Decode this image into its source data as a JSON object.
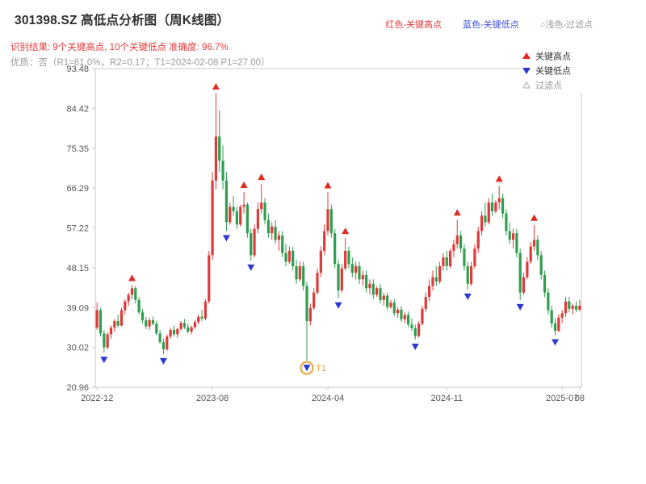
{
  "header": {
    "title": "301398.SZ 高低点分析图（周K线图）",
    "legend_top": [
      {
        "label": "红色-关键高点",
        "color": "#e03c3c"
      },
      {
        "label": "蓝色-关键低点",
        "color": "#3c4ddb"
      },
      {
        "label": "○浅色-过滤点",
        "color": "#999999"
      }
    ],
    "result_line": "识别结果: 9个关键高点, 10个关键低点  准确度: 96.7%",
    "quality_line": "优质：否（R1=61.0%，R2=0.17；T1=2024-02-08 P1=27.00）"
  },
  "chart_data": {
    "type": "candlestick",
    "title": "301398.SZ 高低点分析图（周K线图）",
    "ylim": [
      20.96,
      93.48
    ],
    "y_ticks": [
      20.96,
      30.02,
      39.09,
      48.15,
      57.22,
      66.29,
      75.35,
      84.42,
      93.48
    ],
    "x_ticks": [
      {
        "i": 0,
        "label": "2022-12"
      },
      {
        "i": 33,
        "label": "2023-08"
      },
      {
        "i": 66,
        "label": "2024-04"
      },
      {
        "i": 100,
        "label": "2024-11"
      },
      {
        "i": 133,
        "label": "2025-07"
      },
      {
        "i": 138,
        "label": "08"
      }
    ],
    "colors": {
      "up": "#dd3b3a",
      "down": "#2f9e4f",
      "key_high": "#e02a22",
      "key_low": "#2a3ace",
      "filtered": "#aaaaaa",
      "t1": "#e9a23b",
      "frame": "#c9c9c9",
      "axis_text": "#555555"
    },
    "legend": [
      {
        "label": "关键高点",
        "marker": "triangle-up",
        "color": "#e02a22",
        "text_color": "#333333"
      },
      {
        "label": "关键低点",
        "marker": "triangle-down",
        "color": "#2a3ace",
        "text_color": "#333333"
      },
      {
        "label": "过滤点",
        "marker": "triangle-up-hollow",
        "color": "#aaaaaa",
        "text_color": "#999999"
      }
    ],
    "candles": [
      [
        34.5,
        40.3,
        34.0,
        38.5
      ],
      [
        38.5,
        39.0,
        32.5,
        33.2
      ],
      [
        33.2,
        34.0,
        28.8,
        30.0
      ],
      [
        30.0,
        33.5,
        29.5,
        33.0
      ],
      [
        33.0,
        35.0,
        32.0,
        34.5
      ],
      [
        34.5,
        36.5,
        33.5,
        36.0
      ],
      [
        36.0,
        37.5,
        34.5,
        35.0
      ],
      [
        35.0,
        39.0,
        34.8,
        38.5
      ],
      [
        38.5,
        41.0,
        37.5,
        40.5
      ],
      [
        40.5,
        42.5,
        39.5,
        42.0
      ],
      [
        42.0,
        44.2,
        41.0,
        43.5
      ],
      [
        43.5,
        44.0,
        40.0,
        40.8
      ],
      [
        40.8,
        41.5,
        37.5,
        38.0
      ],
      [
        38.0,
        38.8,
        35.5,
        36.2
      ],
      [
        36.2,
        37.0,
        34.2,
        34.8
      ],
      [
        34.8,
        36.8,
        34.0,
        36.2
      ],
      [
        36.2,
        37.0,
        35.0,
        35.4
      ],
      [
        35.4,
        36.0,
        32.8,
        33.2
      ],
      [
        33.2,
        34.0,
        30.8,
        31.2
      ],
      [
        31.2,
        32.0,
        28.5,
        29.6
      ],
      [
        29.6,
        33.0,
        29.2,
        32.5
      ],
      [
        32.5,
        34.5,
        32.0,
        34.0
      ],
      [
        34.0,
        35.0,
        32.5,
        33.0
      ],
      [
        33.0,
        34.5,
        32.2,
        34.2
      ],
      [
        34.2,
        36.0,
        33.8,
        35.6
      ],
      [
        35.6,
        36.5,
        34.2,
        34.6
      ],
      [
        34.6,
        35.5,
        33.2,
        33.6
      ],
      [
        33.6,
        35.0,
        33.0,
        34.6
      ],
      [
        34.6,
        36.2,
        34.2,
        35.8
      ],
      [
        35.8,
        37.5,
        35.2,
        37.0
      ],
      [
        37.0,
        38.5,
        36.0,
        36.6
      ],
      [
        36.6,
        41.0,
        36.2,
        40.5
      ],
      [
        40.5,
        52.0,
        40.0,
        51.0
      ],
      [
        51.0,
        70.0,
        50.0,
        68.0
      ],
      [
        68.0,
        87.8,
        66.0,
        78.0
      ],
      [
        78.0,
        84.0,
        70.0,
        72.5
      ],
      [
        72.5,
        76.0,
        66.0,
        68.0
      ],
      [
        68.0,
        70.0,
        56.5,
        58.5
      ],
      [
        58.5,
        63.0,
        58.0,
        62.0
      ],
      [
        62.0,
        64.5,
        60.0,
        61.0
      ],
      [
        61.0,
        62.0,
        57.0,
        58.0
      ],
      [
        58.0,
        62.5,
        57.5,
        62.0
      ],
      [
        62.0,
        65.4,
        60.5,
        62.5
      ],
      [
        62.5,
        63.0,
        55.0,
        56.0
      ],
      [
        56.0,
        57.0,
        49.8,
        51.0
      ],
      [
        51.0,
        58.0,
        50.5,
        57.0
      ],
      [
        57.0,
        63.0,
        56.0,
        61.5
      ],
      [
        61.5,
        67.2,
        60.5,
        63.0
      ],
      [
        63.0,
        64.0,
        58.0,
        59.0
      ],
      [
        59.0,
        60.5,
        55.0,
        56.0
      ],
      [
        56.0,
        58.5,
        54.5,
        57.5
      ],
      [
        57.5,
        59.0,
        53.5,
        54.5
      ],
      [
        54.5,
        56.5,
        52.0,
        55.5
      ],
      [
        55.5,
        56.5,
        50.5,
        51.5
      ],
      [
        51.5,
        53.5,
        48.5,
        49.5
      ],
      [
        49.5,
        53.0,
        49.0,
        52.0
      ],
      [
        52.0,
        53.0,
        47.5,
        48.5
      ],
      [
        48.5,
        50.0,
        44.5,
        45.5
      ],
      [
        45.5,
        49.5,
        45.0,
        48.5
      ],
      [
        48.5,
        49.5,
        43.0,
        44.0
      ],
      [
        44.0,
        45.0,
        27.0,
        36.0
      ],
      [
        36.0,
        40.0,
        35.0,
        39.0
      ],
      [
        39.0,
        43.5,
        38.5,
        42.5
      ],
      [
        42.5,
        48.0,
        42.0,
        47.0
      ],
      [
        47.0,
        53.0,
        46.0,
        52.0
      ],
      [
        52.0,
        58.0,
        51.0,
        56.5
      ],
      [
        56.5,
        65.3,
        55.5,
        61.5
      ],
      [
        61.5,
        62.5,
        55.0,
        56.0
      ],
      [
        56.0,
        57.0,
        48.0,
        49.0
      ],
      [
        49.0,
        50.0,
        41.2,
        43.0
      ],
      [
        43.0,
        49.0,
        42.5,
        48.0
      ],
      [
        48.0,
        54.9,
        47.5,
        52.0
      ],
      [
        52.0,
        53.0,
        48.0,
        49.0
      ],
      [
        49.0,
        50.5,
        46.0,
        47.0
      ],
      [
        47.0,
        49.5,
        45.5,
        48.5
      ],
      [
        48.5,
        49.5,
        44.5,
        45.5
      ],
      [
        45.5,
        47.5,
        44.0,
        46.5
      ],
      [
        46.5,
        47.5,
        42.5,
        43.5
      ],
      [
        43.5,
        45.5,
        42.0,
        44.5
      ],
      [
        44.5,
        45.5,
        41.0,
        42.0
      ],
      [
        42.0,
        44.0,
        41.5,
        43.5
      ],
      [
        43.5,
        44.5,
        40.0,
        40.8
      ],
      [
        40.8,
        42.5,
        39.5,
        41.8
      ],
      [
        41.8,
        42.5,
        38.5,
        39.2
      ],
      [
        39.2,
        40.8,
        38.8,
        40.2
      ],
      [
        40.2,
        41.0,
        37.2,
        37.8
      ],
      [
        37.8,
        39.2,
        36.8,
        38.6
      ],
      [
        38.6,
        39.4,
        35.8,
        36.4
      ],
      [
        36.4,
        38.0,
        35.5,
        37.4
      ],
      [
        37.4,
        38.2,
        34.6,
        35.2
      ],
      [
        35.2,
        36.6,
        33.8,
        34.4
      ],
      [
        34.4,
        35.2,
        31.8,
        32.6
      ],
      [
        32.6,
        36.0,
        32.2,
        35.4
      ],
      [
        35.4,
        39.5,
        35.0,
        38.8
      ],
      [
        38.8,
        42.5,
        38.0,
        41.5
      ],
      [
        41.5,
        45.5,
        40.5,
        44.0
      ],
      [
        44.0,
        47.5,
        43.0,
        46.0
      ],
      [
        46.0,
        48.5,
        44.0,
        45.0
      ],
      [
        45.0,
        49.5,
        44.5,
        48.5
      ],
      [
        48.5,
        51.5,
        47.5,
        50.5
      ],
      [
        50.5,
        52.0,
        47.5,
        48.5
      ],
      [
        48.5,
        52.5,
        48.0,
        52.0
      ],
      [
        52.0,
        54.5,
        50.5,
        53.5
      ],
      [
        53.5,
        59.1,
        52.5,
        55.5
      ],
      [
        55.5,
        56.5,
        51.5,
        52.5
      ],
      [
        52.5,
        53.5,
        47.5,
        48.5
      ],
      [
        48.5,
        49.5,
        43.2,
        44.5
      ],
      [
        44.5,
        49.5,
        44.0,
        48.5
      ],
      [
        48.5,
        53.5,
        48.0,
        52.5
      ],
      [
        52.5,
        57.5,
        51.5,
        56.5
      ],
      [
        56.5,
        61.0,
        55.5,
        60.0
      ],
      [
        60.0,
        63.0,
        57.5,
        58.5
      ],
      [
        58.5,
        64.0,
        58.0,
        63.0
      ],
      [
        63.0,
        65.0,
        60.0,
        61.0
      ],
      [
        61.0,
        63.5,
        60.5,
        63.0
      ],
      [
        63.0,
        66.8,
        61.5,
        64.0
      ],
      [
        64.0,
        65.0,
        59.5,
        60.5
      ],
      [
        60.5,
        61.5,
        55.5,
        56.5
      ],
      [
        56.5,
        58.5,
        53.5,
        54.5
      ],
      [
        54.5,
        57.0,
        52.5,
        56.0
      ],
      [
        56.0,
        57.0,
        50.5,
        51.5
      ],
      [
        51.5,
        52.5,
        40.8,
        42.5
      ],
      [
        42.5,
        47.0,
        42.0,
        46.0
      ],
      [
        46.0,
        50.5,
        45.5,
        49.5
      ],
      [
        49.5,
        54.0,
        49.0,
        53.0
      ],
      [
        53.0,
        57.9,
        52.0,
        54.5
      ],
      [
        54.5,
        55.5,
        50.0,
        51.0
      ],
      [
        51.0,
        52.0,
        45.5,
        46.5
      ],
      [
        46.5,
        47.5,
        41.5,
        42.5
      ],
      [
        42.5,
        43.5,
        37.5,
        38.5
      ],
      [
        38.5,
        39.5,
        34.5,
        35.5
      ],
      [
        35.5,
        36.5,
        32.8,
        33.8
      ],
      [
        33.8,
        37.5,
        33.5,
        36.8
      ],
      [
        36.8,
        38.5,
        35.5,
        37.8
      ],
      [
        37.8,
        41.5,
        37.0,
        40.5
      ],
      [
        40.5,
        41.5,
        38.0,
        38.8
      ],
      [
        38.8,
        40.0,
        37.5,
        39.5
      ],
      [
        39.5,
        40.5,
        38.0,
        38.6
      ],
      [
        38.6,
        40.8,
        38.2,
        39.5
      ]
    ],
    "key_highs": [
      {
        "i": 10,
        "price": 44.2
      },
      {
        "i": 34,
        "price": 87.8
      },
      {
        "i": 42,
        "price": 65.4
      },
      {
        "i": 47,
        "price": 67.2
      },
      {
        "i": 66,
        "price": 65.3
      },
      {
        "i": 71,
        "price": 54.9
      },
      {
        "i": 103,
        "price": 59.1
      },
      {
        "i": 115,
        "price": 66.8
      },
      {
        "i": 125,
        "price": 57.9
      }
    ],
    "key_lows": [
      {
        "i": 2,
        "price": 28.8
      },
      {
        "i": 19,
        "price": 28.5
      },
      {
        "i": 37,
        "price": 56.5
      },
      {
        "i": 44,
        "price": 49.8
      },
      {
        "i": 60,
        "price": 27.0
      },
      {
        "i": 69,
        "price": 41.2
      },
      {
        "i": 91,
        "price": 31.8
      },
      {
        "i": 106,
        "price": 43.2
      },
      {
        "i": 121,
        "price": 40.8
      },
      {
        "i": 131,
        "price": 32.8
      }
    ],
    "t1_annotation": {
      "i": 60,
      "price": 27.0,
      "label": "T1",
      "date": "2024-02-08"
    }
  }
}
